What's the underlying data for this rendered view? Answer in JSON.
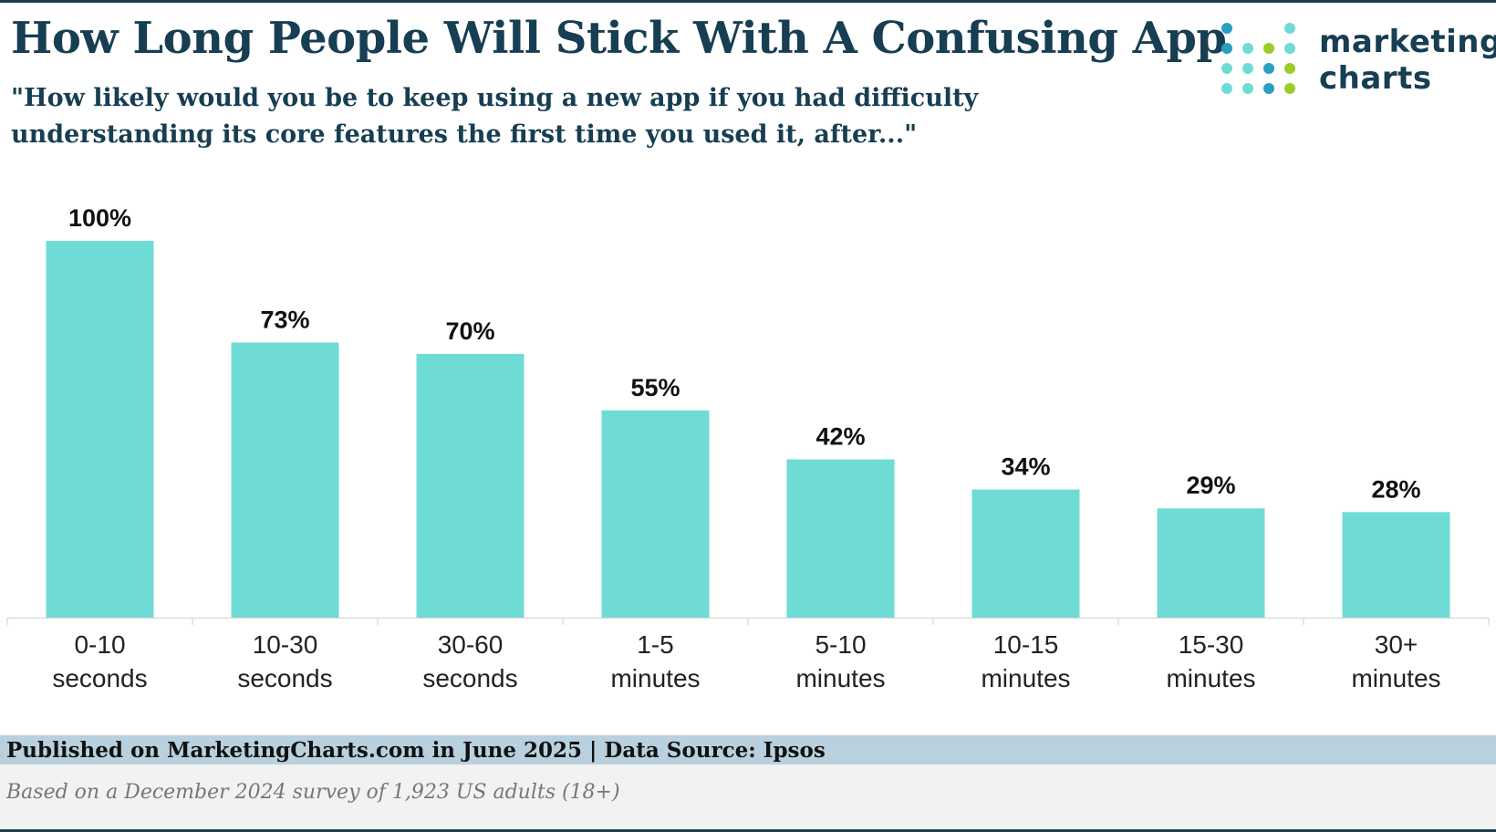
{
  "header": {
    "title": "How Long People Will Stick With A Confusing App",
    "subtitle_line1": "\"How likely would you be to keep using a new app if you had difficulty",
    "subtitle_line2": "understanding its core features the first time you used it, after...\""
  },
  "logo": {
    "line1": "marketing",
    "line2": "charts",
    "dot_colors": [
      "#2a9fc0",
      "#6fdbd5",
      "#9ccc2b"
    ]
  },
  "chart_data": {
    "type": "bar",
    "categories": [
      [
        "0-10",
        "seconds"
      ],
      [
        "10-30",
        "seconds"
      ],
      [
        "30-60",
        "seconds"
      ],
      [
        "1-5",
        "minutes"
      ],
      [
        "5-10",
        "minutes"
      ],
      [
        "10-15",
        "minutes"
      ],
      [
        "15-30",
        "minutes"
      ],
      [
        "30+",
        "minutes"
      ]
    ],
    "values": [
      100,
      73,
      70,
      55,
      42,
      34,
      29,
      28
    ],
    "value_labels": [
      "100%",
      "73%",
      "70%",
      "55%",
      "42%",
      "34%",
      "29%",
      "28%"
    ],
    "ylim": [
      0,
      100
    ],
    "unit": "%",
    "bar_color": "#6fdbd5",
    "grid": false
  },
  "footer": {
    "published": "Published on MarketingCharts.com in June 2025 | Data Source: Ipsos",
    "note": "Based on a December 2024 survey of 1,923 US adults (18+)"
  }
}
